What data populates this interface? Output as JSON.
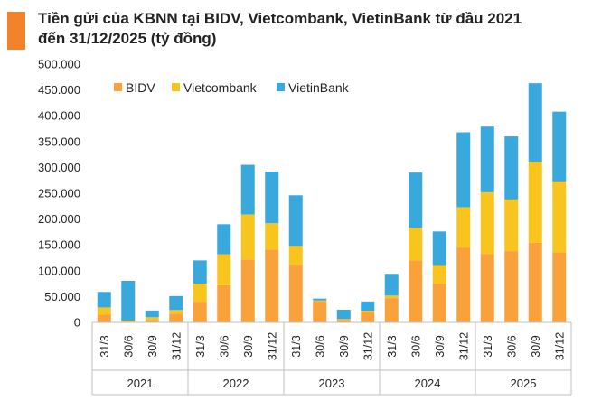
{
  "colors": {
    "accent": "#F2832A",
    "bidv": "#F9A23B",
    "vietcombank": "#F7C51E",
    "vietinbank": "#38A8DD"
  },
  "title_line1": "Tiền gửi của KBNN tại BIDV, Vietcombank, VietinBank từ đầu 2021",
  "title_line2": "đến 31/12/2025 (tỷ đồng)",
  "chart_data": {
    "type": "bar",
    "stacked": true,
    "title": "Tiền gửi của KBNN tại BIDV, Vietcombank, VietinBank từ đầu 2021 đến 31/12/2025 (tỷ đồng)",
    "ylim": [
      0,
      500000
    ],
    "yticks": [
      "0",
      "50.000",
      "100.000",
      "150.000",
      "200.000",
      "250.000",
      "300.000",
      "350.000",
      "400.000",
      "450.000",
      "500.000"
    ],
    "grid": false,
    "legend_position": "top",
    "groups": [
      {
        "year": "2021",
        "categories": [
          "31/3",
          "30/6",
          "30/9",
          "31/12"
        ]
      },
      {
        "year": "2022",
        "categories": [
          "31/3",
          "30/6",
          "30/9",
          "31/12"
        ]
      },
      {
        "year": "2023",
        "categories": [
          "31/3",
          "30/6",
          "30/9",
          "31/12"
        ]
      },
      {
        "year": "2024",
        "categories": [
          "31/3",
          "30/6",
          "30/9",
          "31/12"
        ]
      },
      {
        "year": "2025",
        "categories": [
          "31/3",
          "30/6",
          "30/9",
          "31/12"
        ]
      }
    ],
    "series": [
      {
        "name": "BIDV",
        "values": [
          15000,
          1500,
          5000,
          17000,
          40000,
          72000,
          122000,
          141000,
          112000,
          41000,
          5000,
          20000,
          47000,
          120000,
          75000,
          145000,
          132000,
          138000,
          154000,
          136000
        ]
      },
      {
        "name": "Vietcombank",
        "values": [
          14000,
          2000,
          5000,
          7000,
          35000,
          60000,
          87000,
          51000,
          36000,
          1500,
          1500,
          2500,
          5000,
          63000,
          36000,
          78000,
          120000,
          100000,
          157000,
          137000
        ]
      },
      {
        "name": "VietinBank",
        "values": [
          30000,
          77000,
          13000,
          27000,
          45000,
          58000,
          96000,
          100000,
          98000,
          3500,
          18000,
          18000,
          42000,
          107000,
          65000,
          145000,
          127000,
          122000,
          152000,
          135000
        ]
      }
    ]
  }
}
